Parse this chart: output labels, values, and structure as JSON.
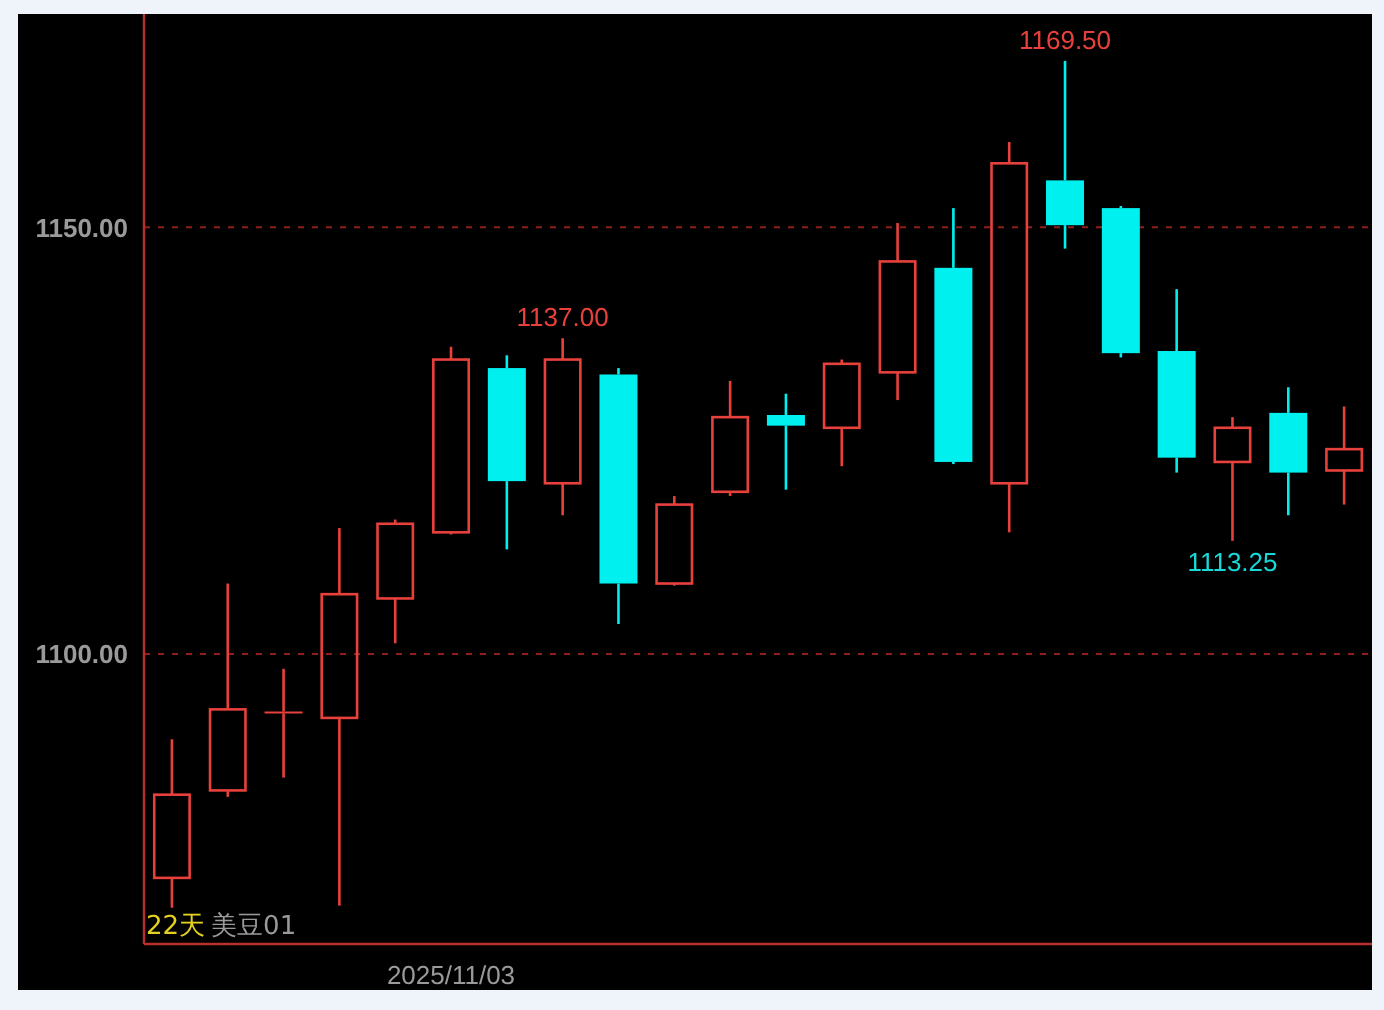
{
  "chart_data": {
    "type": "candlestick",
    "categories": [
      null,
      null,
      null,
      null,
      null,
      "2025/11/03",
      null,
      null,
      null,
      null,
      null,
      null,
      null,
      null,
      null,
      null,
      null,
      null,
      null,
      null,
      null,
      null
    ],
    "ohlc": [
      [
        1073.75,
        1090.0,
        1070.25,
        1083.5
      ],
      [
        1084.0,
        1108.25,
        1083.25,
        1093.5
      ],
      [
        1093.25,
        1098.25,
        1085.5,
        1093.25
      ],
      [
        1092.5,
        1114.75,
        1070.5,
        1107.0
      ],
      [
        1106.5,
        1115.75,
        1101.25,
        1115.25
      ],
      [
        1114.25,
        1136.0,
        1114.0,
        1134.5
      ],
      [
        1133.5,
        1135.0,
        1112.25,
        1120.25
      ],
      [
        1120.0,
        1137.0,
        1116.25,
        1134.5
      ],
      [
        1132.75,
        1133.5,
        1103.5,
        1108.25
      ],
      [
        1108.25,
        1118.5,
        1108.0,
        1117.5
      ],
      [
        1119.0,
        1132.0,
        1118.5,
        1127.75
      ],
      [
        1128.0,
        1130.5,
        1119.25,
        1126.75
      ],
      [
        1126.5,
        1134.5,
        1122.0,
        1134.0
      ],
      [
        1133.0,
        1150.5,
        1129.75,
        1146.0
      ],
      [
        1145.25,
        1152.25,
        1122.25,
        1122.5
      ],
      [
        1120.0,
        1160.0,
        1114.25,
        1157.5
      ],
      [
        1155.5,
        1169.5,
        1147.5,
        1150.25
      ],
      [
        1152.25,
        1152.5,
        1134.75,
        1135.25
      ],
      [
        1135.5,
        1142.75,
        1121.25,
        1123.0
      ],
      [
        1122.5,
        1127.75,
        1113.25,
        1126.5
      ],
      [
        1128.25,
        1131.25,
        1116.25,
        1121.25
      ],
      [
        1121.5,
        1129.0,
        1117.5,
        1124.0
      ]
    ],
    "colors": [
      "#e8413c",
      "#e8413c",
      "#e8413c",
      "#e8413c",
      "#e8413c",
      "#e8413c",
      "#00f0f0",
      "#e8413c",
      "#00f0f0",
      "#e8413c",
      "#e8413c",
      "#00f0f0",
      "#e8413c",
      "#e8413c",
      "#00f0f0",
      "#e8413c",
      "#00f0f0",
      "#00f0f0",
      "#00f0f0",
      "#e8413c",
      "#00f0f0",
      "#e8413c"
    ],
    "ylim": [
      1066,
      1175
    ],
    "yticks": [
      {
        "value": 1100,
        "label": "1100.00"
      },
      {
        "value": 1150,
        "label": "1150.00"
      }
    ],
    "grid": "y",
    "annotations": [
      "22天",
      "美豆01",
      {
        "text": "1169.50",
        "y": 1169.5
      },
      {
        "text": "1137.00",
        "y": 1137.0
      },
      {
        "text": "1113.25",
        "y": 1113.25
      }
    ]
  }
}
